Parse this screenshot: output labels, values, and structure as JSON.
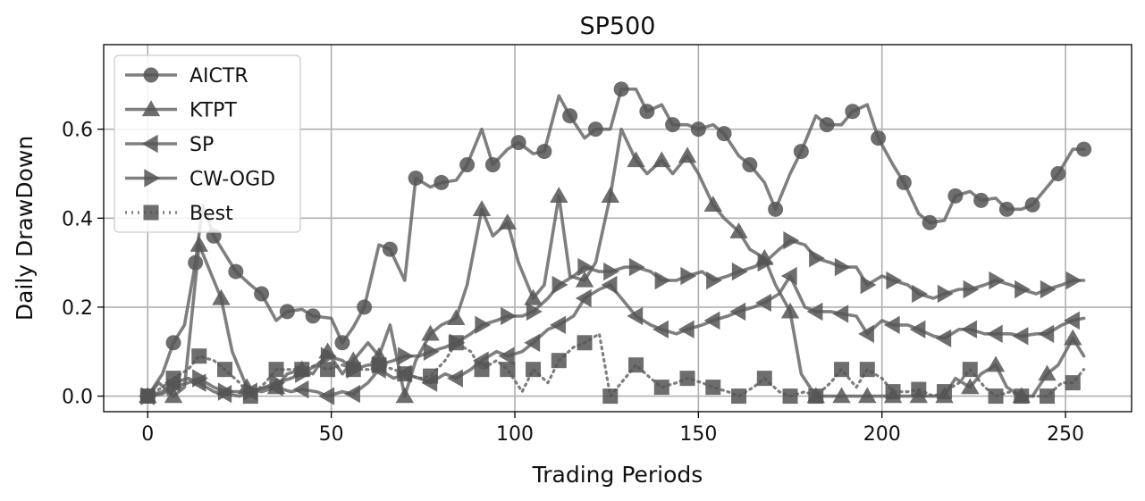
{
  "chart_data": {
    "type": "line",
    "title": "SP500",
    "xlabel": "Trading Periods",
    "ylabel": "Daily DrawDown",
    "xlim": [
      -12,
      268
    ],
    "ylim": [
      -0.035,
      0.79
    ],
    "xticks": [
      0,
      50,
      100,
      150,
      200,
      250
    ],
    "xtick_labels": [
      "0",
      "50",
      "100",
      "150",
      "200",
      "250"
    ],
    "yticks": [
      0.0,
      0.2,
      0.4,
      0.6
    ],
    "ytick_labels": [
      "0.0",
      "0.2",
      "0.4",
      "0.6"
    ],
    "grid": true,
    "legend_position": "upper-left",
    "line_color": "#5f5f5f",
    "marker_color": "#555555",
    "series": [
      {
        "name": "AICTR",
        "marker": "circle",
        "style": "solid",
        "x": [
          0,
          4,
          7,
          10,
          13,
          15,
          18,
          21,
          24,
          28,
          31,
          35,
          38,
          42,
          45,
          50,
          53,
          56,
          59,
          63,
          66,
          70,
          73,
          77,
          80,
          84,
          87,
          91,
          94,
          98,
          101,
          105,
          108,
          112,
          115,
          119,
          122,
          126,
          129,
          133,
          136,
          140,
          143,
          147,
          150,
          154,
          157,
          161,
          164,
          168,
          171,
          175,
          178,
          182,
          185,
          189,
          192,
          196,
          199,
          203,
          206,
          210,
          213,
          217,
          220,
          224,
          227,
          231,
          234,
          238,
          241,
          245,
          248,
          252,
          255
        ],
        "y": [
          0.0,
          0.05,
          0.12,
          0.16,
          0.3,
          0.43,
          0.36,
          0.32,
          0.28,
          0.25,
          0.23,
          0.17,
          0.19,
          0.195,
          0.18,
          0.175,
          0.12,
          0.155,
          0.2,
          0.34,
          0.33,
          0.26,
          0.49,
          0.47,
          0.48,
          0.485,
          0.52,
          0.6,
          0.52,
          0.555,
          0.57,
          0.545,
          0.55,
          0.675,
          0.63,
          0.58,
          0.6,
          0.6,
          0.69,
          0.69,
          0.64,
          0.655,
          0.61,
          0.61,
          0.6,
          0.61,
          0.59,
          0.54,
          0.52,
          0.48,
          0.42,
          0.5,
          0.55,
          0.63,
          0.61,
          0.61,
          0.64,
          0.655,
          0.58,
          0.52,
          0.48,
          0.41,
          0.39,
          0.395,
          0.45,
          0.46,
          0.44,
          0.445,
          0.42,
          0.42,
          0.43,
          0.47,
          0.5,
          0.555,
          0.555
        ]
      },
      {
        "name": "KTPT",
        "marker": "triangle-up",
        "style": "solid",
        "x": [
          0,
          3,
          7,
          10,
          14,
          16,
          20,
          23,
          27,
          31,
          35,
          38,
          42,
          45,
          49,
          53,
          56,
          60,
          63,
          66,
          70,
          73,
          77,
          80,
          84,
          87,
          91,
          94,
          98,
          101,
          105,
          108,
          112,
          115,
          119,
          122,
          126,
          129,
          133,
          136,
          140,
          143,
          147,
          150,
          154,
          157,
          161,
          164,
          168,
          171,
          175,
          178,
          182,
          185,
          189,
          192,
          196,
          199,
          203,
          206,
          210,
          213,
          217,
          220,
          224,
          227,
          231,
          234,
          238,
          241,
          245,
          248,
          252,
          255
        ],
        "y": [
          0.0,
          0.03,
          0.0,
          0.02,
          0.34,
          0.3,
          0.22,
          0.1,
          0.02,
          0.01,
          0.02,
          0.05,
          0.06,
          0.05,
          0.1,
          0.05,
          0.08,
          0.12,
          0.09,
          0.16,
          0.0,
          0.08,
          0.14,
          0.16,
          0.175,
          0.25,
          0.42,
          0.36,
          0.39,
          0.3,
          0.22,
          0.25,
          0.45,
          0.27,
          0.26,
          0.3,
          0.45,
          0.6,
          0.53,
          0.5,
          0.53,
          0.5,
          0.54,
          0.5,
          0.43,
          0.4,
          0.37,
          0.33,
          0.31,
          0.25,
          0.19,
          0.05,
          0.0,
          0.0,
          0.0,
          0.0,
          0.0,
          0.0,
          0.0,
          0.0,
          0.0,
          0.0,
          0.0,
          0.04,
          0.02,
          0.05,
          0.07,
          0.02,
          0.0,
          0.0,
          0.05,
          0.07,
          0.13,
          0.09
        ]
      },
      {
        "name": "SP",
        "marker": "triangle-left",
        "style": "solid",
        "x": [
          0,
          4,
          7,
          11,
          14,
          18,
          21,
          25,
          28,
          32,
          35,
          39,
          42,
          46,
          49,
          53,
          56,
          60,
          63,
          67,
          70,
          74,
          77,
          81,
          84,
          88,
          91,
          95,
          98,
          102,
          105,
          109,
          112,
          116,
          119,
          123,
          126,
          130,
          133,
          137,
          140,
          144,
          147,
          151,
          154,
          158,
          161,
          165,
          168,
          172,
          175,
          179,
          182,
          186,
          189,
          193,
          196,
          200,
          203,
          207,
          210,
          214,
          217,
          221,
          224,
          228,
          231,
          235,
          238,
          242,
          245,
          249,
          252,
          255
        ],
        "y": [
          0.0,
          0.01,
          0.03,
          0.04,
          0.03,
          0.01,
          0.005,
          0.0,
          0.01,
          0.02,
          0.02,
          0.01,
          0.015,
          0.01,
          0.0,
          0.01,
          0.005,
          0.03,
          0.06,
          0.04,
          0.05,
          0.04,
          0.03,
          0.05,
          0.04,
          0.06,
          0.08,
          0.1,
          0.09,
          0.1,
          0.12,
          0.15,
          0.16,
          0.18,
          0.22,
          0.24,
          0.25,
          0.21,
          0.18,
          0.16,
          0.15,
          0.14,
          0.15,
          0.16,
          0.17,
          0.18,
          0.19,
          0.2,
          0.21,
          0.23,
          0.27,
          0.2,
          0.19,
          0.19,
          0.185,
          0.18,
          0.14,
          0.17,
          0.16,
          0.16,
          0.15,
          0.135,
          0.13,
          0.15,
          0.15,
          0.14,
          0.14,
          0.14,
          0.135,
          0.14,
          0.14,
          0.16,
          0.17,
          0.175
        ]
      },
      {
        "name": "CW-OGD",
        "marker": "triangle-right",
        "style": "solid",
        "x": [
          0,
          4,
          7,
          11,
          14,
          18,
          21,
          25,
          28,
          32,
          35,
          39,
          42,
          46,
          49,
          53,
          56,
          60,
          63,
          67,
          70,
          74,
          77,
          81,
          84,
          88,
          91,
          95,
          98,
          102,
          105,
          109,
          112,
          116,
          119,
          123,
          126,
          130,
          133,
          137,
          140,
          144,
          147,
          151,
          154,
          158,
          161,
          165,
          168,
          172,
          175,
          179,
          182,
          186,
          189,
          193,
          196,
          200,
          203,
          207,
          210,
          214,
          217,
          221,
          224,
          228,
          231,
          235,
          238,
          242,
          245,
          249,
          252,
          255
        ],
        "y": [
          0.0,
          0.005,
          0.02,
          0.03,
          0.04,
          0.02,
          0.01,
          0.01,
          0.01,
          0.02,
          0.03,
          0.04,
          0.05,
          0.07,
          0.09,
          0.08,
          0.06,
          0.07,
          0.07,
          0.08,
          0.09,
          0.09,
          0.1,
          0.11,
          0.12,
          0.14,
          0.16,
          0.17,
          0.18,
          0.18,
          0.19,
          0.22,
          0.25,
          0.27,
          0.29,
          0.28,
          0.28,
          0.29,
          0.29,
          0.28,
          0.26,
          0.26,
          0.27,
          0.28,
          0.26,
          0.27,
          0.28,
          0.29,
          0.3,
          0.33,
          0.35,
          0.34,
          0.31,
          0.3,
          0.29,
          0.29,
          0.25,
          0.27,
          0.26,
          0.25,
          0.23,
          0.22,
          0.23,
          0.24,
          0.24,
          0.25,
          0.26,
          0.25,
          0.24,
          0.23,
          0.24,
          0.25,
          0.26,
          0.26
        ]
      },
      {
        "name": "Best",
        "marker": "square",
        "style": "dotted",
        "x": [
          0,
          4,
          7,
          11,
          14,
          18,
          21,
          25,
          28,
          32,
          35,
          39,
          42,
          46,
          49,
          53,
          56,
          60,
          63,
          67,
          70,
          74,
          77,
          81,
          84,
          88,
          91,
          95,
          98,
          102,
          105,
          109,
          112,
          116,
          119,
          123,
          126,
          130,
          133,
          137,
          140,
          144,
          147,
          151,
          154,
          158,
          161,
          165,
          168,
          172,
          175,
          179,
          182,
          186,
          189,
          193,
          196,
          200,
          203,
          207,
          210,
          214,
          217,
          221,
          224,
          228,
          231,
          235,
          238,
          242,
          245,
          249,
          252,
          255
        ],
        "y": [
          0.0,
          0.02,
          0.04,
          0.06,
          0.09,
          0.08,
          0.06,
          0.03,
          0.0,
          0.03,
          0.06,
          0.06,
          0.06,
          0.07,
          0.06,
          0.07,
          0.06,
          0.06,
          0.07,
          0.06,
          0.05,
          0.04,
          0.045,
          0.08,
          0.12,
          0.1,
          0.06,
          0.08,
          0.06,
          0.01,
          0.06,
          0.03,
          0.08,
          0.11,
          0.12,
          0.14,
          0.0,
          0.04,
          0.07,
          0.04,
          0.02,
          0.03,
          0.04,
          0.03,
          0.02,
          0.01,
          0.0,
          0.02,
          0.04,
          0.01,
          0.0,
          0.01,
          0.0,
          0.03,
          0.06,
          0.02,
          0.06,
          0.04,
          0.01,
          0.01,
          0.015,
          0.0,
          0.01,
          0.03,
          0.06,
          0.02,
          0.0,
          0.01,
          0.0,
          0.0,
          0.0,
          0.03,
          0.03,
          0.06
        ]
      }
    ]
  }
}
